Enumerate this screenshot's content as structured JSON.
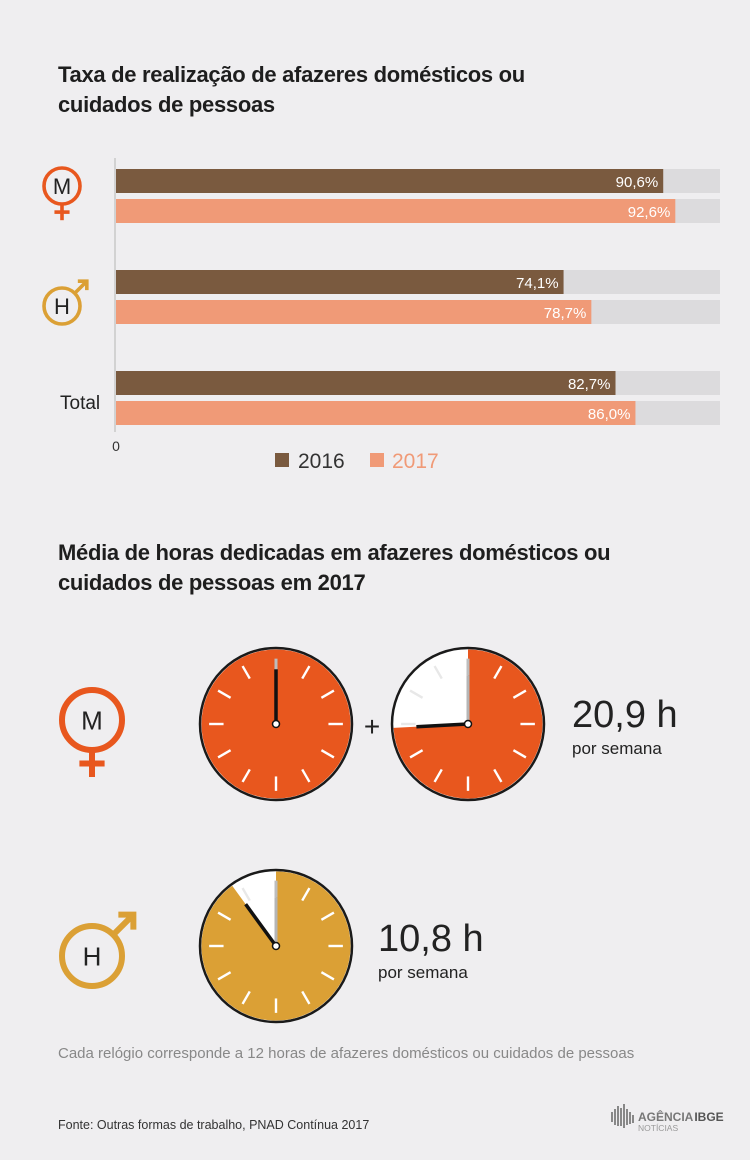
{
  "chart_data": [
    {
      "type": "bar",
      "orientation": "horizontal",
      "title": "Taxa de realização de afazeres domésticos ou cuidados de pessoas",
      "categories": [
        "M",
        "H",
        "Total"
      ],
      "series": [
        {
          "name": "2016",
          "values": [
            90.6,
            74.1,
            82.7
          ],
          "labels": [
            "90,6%",
            "74,1%",
            "82,7%"
          ]
        },
        {
          "name": "2017",
          "values": [
            92.6,
            78.7,
            86.0
          ],
          "labels": [
            "92,6%",
            "78,7%",
            "86,0%"
          ]
        }
      ],
      "xlim": [
        0,
        100
      ],
      "x_tick_label": "0",
      "legend_position": "bottom",
      "colors": {
        "2016": "#7a5a3f",
        "2017": "#f09a77",
        "track": "#dcdbdd"
      }
    },
    {
      "type": "pictogram",
      "title": "Média de horas dedicadas em afazeres domésticos ou cuidados de pessoas em 2017",
      "unit_hours_per_clock": 12,
      "groups": [
        {
          "symbol": "M",
          "value": 20.9,
          "value_label": "20,9 h",
          "unit_label": "por semana",
          "color": "#e8571e"
        },
        {
          "symbol": "H",
          "value": 10.8,
          "value_label": "10,8 h",
          "unit_label": "por semana",
          "color": "#dba035"
        }
      ],
      "operator": "+"
    }
  ],
  "text": {
    "title1": "Taxa de realização de afazeres domésticos ou cuidados de pessoas",
    "title2": "Média de horas dedicadas em afazeres domésticos ou cuidados de pessoas em 2017",
    "footnote": "Cada relógio corresponde a 12 horas de afazeres domésticos ou cuidados de pessoas",
    "source": "Fonte: Outras formas de trabalho, PNAD Contínua 2017",
    "logo_main": "AGÊNCIA",
    "logo_brand": "IBGE",
    "logo_sub": "NOTÍCIAS",
    "total_label": "Total"
  },
  "colors": {
    "female": "#e8571e",
    "male": "#dba035"
  }
}
